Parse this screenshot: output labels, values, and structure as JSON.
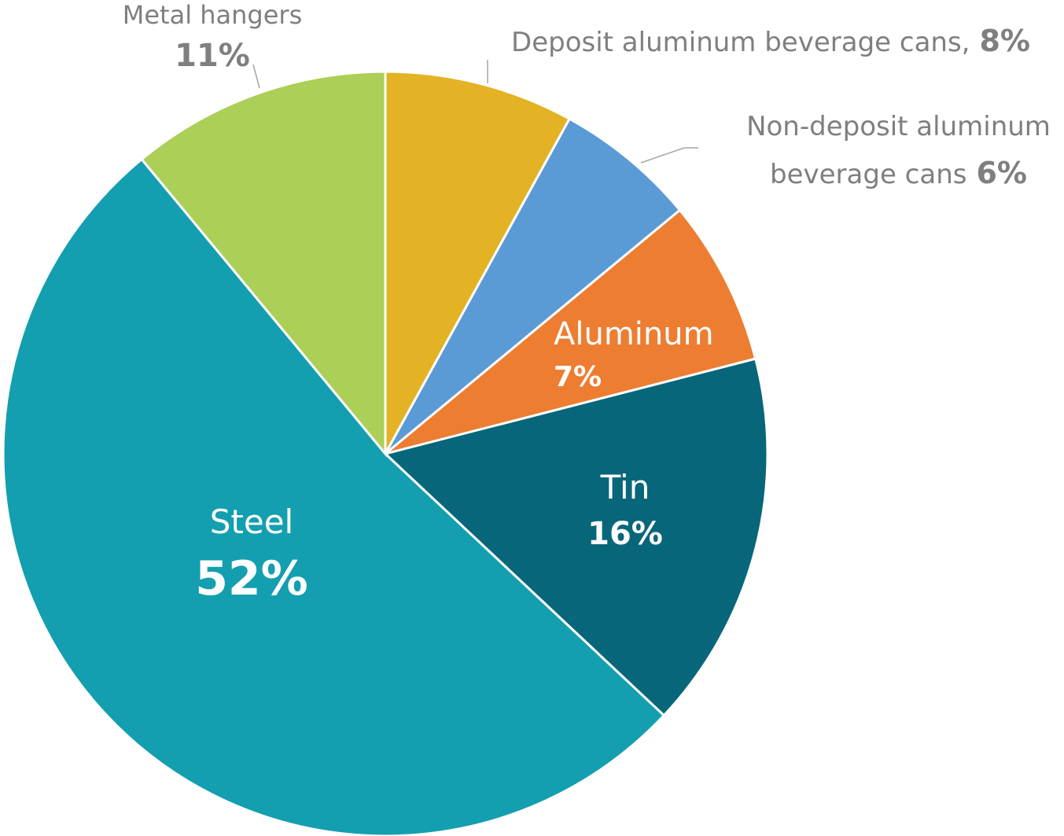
{
  "chart_data": {
    "type": "pie",
    "categories": [
      "Deposit aluminum beverage cans,",
      "Non-deposit aluminum beverage cans",
      "Aluminum",
      "Tin",
      "Steel",
      "Metal hangers"
    ],
    "values": [
      8,
      6,
      7,
      16,
      52,
      11
    ],
    "value_labels": [
      "8%",
      "6%",
      "7%",
      "16%",
      "52%",
      "11%"
    ],
    "colors": [
      "#E3B325",
      "#5B9BD5",
      "#ED7D31",
      "#08667A",
      "#139FAF",
      "#ABCF57"
    ]
  }
}
